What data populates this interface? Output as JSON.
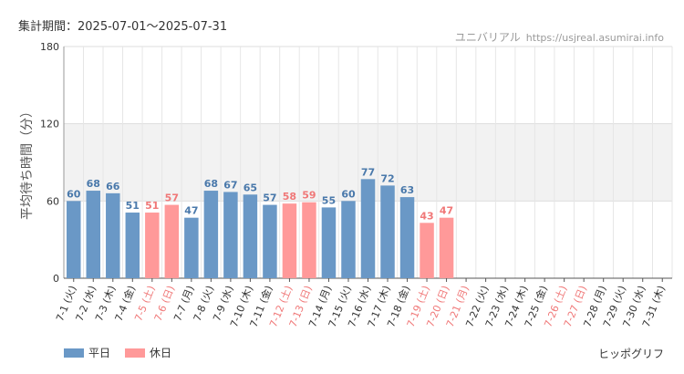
{
  "period_text": "集計期間：2025-07-01～2025-07-31",
  "source": {
    "site": "ユニバリアル",
    "url": "https://usjreal.asumirai.info"
  },
  "brand": "ヒッポグリフ",
  "colors": {
    "weekday": "#6a98c6",
    "holiday": "#ff9999",
    "weekday_label": "#4a79ab",
    "holiday_label": "#f07878",
    "band": "#f2f2f2"
  },
  "legend": [
    {
      "label": "平日",
      "color": "#6a98c6"
    },
    {
      "label": "休日",
      "color": "#ff9999"
    }
  ],
  "chart_data": {
    "type": "bar",
    "ylabel": "平均待ち時間（分）",
    "ylim": [
      0,
      180
    ],
    "yticks": [
      0,
      60,
      120,
      180
    ],
    "categories": [
      "7-1 (火)",
      "7-2 (水)",
      "7-3 (木)",
      "7-4 (金)",
      "7-5 (土)",
      "7-6 (日)",
      "7-7 (月)",
      "7-8 (火)",
      "7-9 (水)",
      "7-10 (木)",
      "7-11 (金)",
      "7-12 (土)",
      "7-13 (日)",
      "7-14 (月)",
      "7-15 (火)",
      "7-16 (水)",
      "7-17 (木)",
      "7-18 (金)",
      "7-19 (土)",
      "7-20 (日)",
      "7-21 (月)",
      "7-22 (火)",
      "7-23 (水)",
      "7-24 (木)",
      "7-25 (金)",
      "7-26 (土)",
      "7-27 (日)",
      "7-28 (月)",
      "7-29 (火)",
      "7-30 (水)",
      "7-31 (木)"
    ],
    "values": [
      60,
      68,
      66,
      51,
      51,
      57,
      47,
      68,
      67,
      65,
      57,
      58,
      59,
      55,
      60,
      77,
      72,
      63,
      43,
      47,
      null,
      null,
      null,
      null,
      null,
      null,
      null,
      null,
      null,
      null,
      null
    ],
    "holiday": [
      false,
      false,
      false,
      false,
      true,
      true,
      false,
      false,
      false,
      false,
      false,
      true,
      true,
      false,
      false,
      false,
      false,
      false,
      true,
      true,
      true,
      false,
      false,
      false,
      false,
      true,
      true,
      false,
      false,
      false,
      false
    ],
    "series": [
      {
        "name": "平日"
      },
      {
        "name": "休日"
      }
    ],
    "grid": true,
    "legend_position": "bottom-left"
  }
}
